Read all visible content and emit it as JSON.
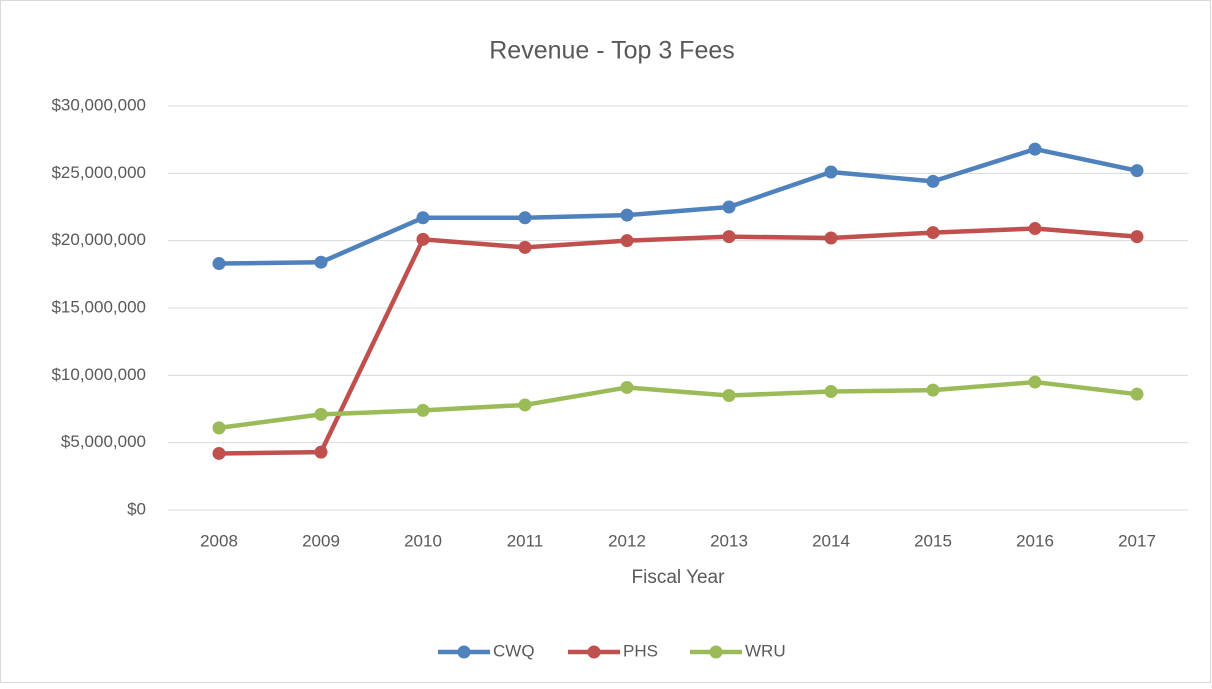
{
  "chart_data": {
    "type": "line",
    "title": "Revenue - Top 3 Fees",
    "x_label": "Fiscal Year",
    "categories": [
      "2008",
      "2009",
      "2010",
      "2011",
      "2012",
      "2013",
      "2014",
      "2015",
      "2016",
      "2017"
    ],
    "series": [
      {
        "name": "CWQ",
        "color": "#4f81bd",
        "values": [
          18300000,
          18400000,
          21700000,
          21700000,
          21900000,
          22500000,
          25100000,
          24400000,
          26800000,
          25200000
        ]
      },
      {
        "name": "PHS",
        "color": "#c0504d",
        "values": [
          4200000,
          4300000,
          20100000,
          19500000,
          20000000,
          20300000,
          20200000,
          20600000,
          20900000,
          20300000
        ]
      },
      {
        "name": "WRU",
        "color": "#9bbb59",
        "values": [
          6100000,
          7100000,
          7400000,
          7800000,
          9100000,
          8500000,
          8800000,
          8900000,
          9500000,
          8600000
        ]
      }
    ],
    "ylim": [
      0,
      30000000
    ],
    "yticks": [
      {
        "value": 0,
        "label": "$0"
      },
      {
        "value": 5000000,
        "label": "$5,000,000"
      },
      {
        "value": 10000000,
        "label": "$10,000,000"
      },
      {
        "value": 15000000,
        "label": "$15,000,000"
      },
      {
        "value": 20000000,
        "label": "$20,000,000"
      },
      {
        "value": 25000000,
        "label": "$25,000,000"
      },
      {
        "value": 30000000,
        "label": "$30,000,000"
      }
    ],
    "grid": true,
    "legend": "bottom"
  }
}
